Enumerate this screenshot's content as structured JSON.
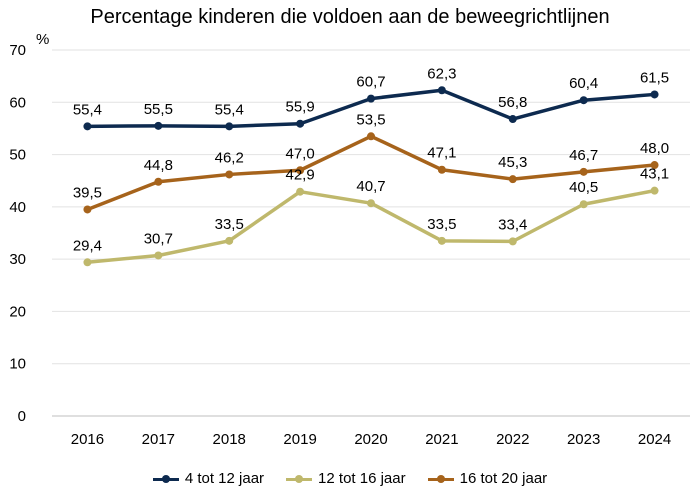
{
  "chart_data": {
    "type": "line",
    "title": "Percentage kinderen die voldoen aan de beweegrichtlijnen",
    "ylabel": "%",
    "xlabel": "",
    "categories": [
      "2016",
      "2017",
      "2018",
      "2019",
      "2020",
      "2021",
      "2022",
      "2023",
      "2024"
    ],
    "ylim": [
      0,
      70
    ],
    "yticks": [
      0,
      10,
      20,
      30,
      40,
      50,
      60,
      70
    ],
    "grid": true,
    "legend_position": "bottom",
    "series": [
      {
        "name": "4 tot 12 jaar",
        "color": "#0d2a4f",
        "values": [
          55.4,
          55.5,
          55.4,
          55.9,
          60.7,
          62.3,
          56.8,
          60.4,
          61.5
        ],
        "labels": [
          "55,4",
          "55,5",
          "55,4",
          "55,9",
          "60,7",
          "62,3",
          "56,8",
          "60,4",
          "61,5"
        ]
      },
      {
        "name": "12 tot 16 jaar",
        "color": "#bfb86c",
        "values": [
          29.4,
          30.7,
          33.5,
          42.9,
          40.7,
          33.5,
          33.4,
          40.5,
          43.1
        ],
        "labels": [
          "29,4",
          "30,7",
          "33,5",
          "42,9",
          "40,7",
          "33,5",
          "33,4",
          "40,5",
          "43,1"
        ]
      },
      {
        "name": "16 tot 20 jaar",
        "color": "#a6631b",
        "values": [
          39.5,
          44.8,
          46.2,
          47.0,
          53.5,
          47.1,
          45.3,
          46.7,
          48.0
        ],
        "labels": [
          "39,5",
          "44,8",
          "46,2",
          "47,0",
          "53,5",
          "47,1",
          "45,3",
          "46,7",
          "48,0"
        ]
      }
    ]
  }
}
